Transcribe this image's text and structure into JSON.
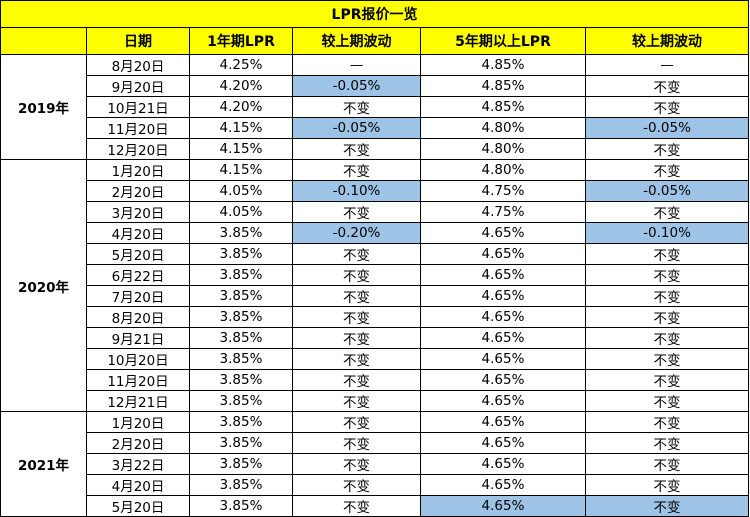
{
  "title": "LPR报价一览",
  "headers": [
    "日期",
    "1年期LPR",
    "较上期波动",
    "5年期以上LPR",
    "较上期波动"
  ],
  "colors": {
    "header_bg": "#ffff00",
    "highlight": "#9dc3e6"
  },
  "groups": [
    {
      "year": "2019年",
      "rows": [
        {
          "date": "8月20日",
          "lpr1": "4.25%",
          "chg1": "—",
          "lpr5": "4.85%",
          "chg5": "—",
          "hl1": false,
          "hl5": false,
          "hl5v": false
        },
        {
          "date": "9月20日",
          "lpr1": "4.20%",
          "chg1": "-0.05%",
          "lpr5": "4.85%",
          "chg5": "不变",
          "hl1": true,
          "hl5": false,
          "hl5v": false
        },
        {
          "date": "10月21日",
          "lpr1": "4.20%",
          "chg1": "不变",
          "lpr5": "4.85%",
          "chg5": "不变",
          "hl1": false,
          "hl5": false,
          "hl5v": false
        },
        {
          "date": "11月20日",
          "lpr1": "4.15%",
          "chg1": "-0.05%",
          "lpr5": "4.80%",
          "chg5": "-0.05%",
          "hl1": true,
          "hl5": true,
          "hl5v": false
        },
        {
          "date": "12月20日",
          "lpr1": "4.15%",
          "chg1": "不变",
          "lpr5": "4.80%",
          "chg5": "不变",
          "hl1": false,
          "hl5": false,
          "hl5v": false
        }
      ]
    },
    {
      "year": "2020年",
      "rows": [
        {
          "date": "1月20日",
          "lpr1": "4.15%",
          "chg1": "不变",
          "lpr5": "4.80%",
          "chg5": "不变",
          "hl1": false,
          "hl5": false,
          "hl5v": false
        },
        {
          "date": "2月20日",
          "lpr1": "4.05%",
          "chg1": "-0.10%",
          "lpr5": "4.75%",
          "chg5": "-0.05%",
          "hl1": true,
          "hl5": true,
          "hl5v": false
        },
        {
          "date": "3月20日",
          "lpr1": "4.05%",
          "chg1": "不变",
          "lpr5": "4.75%",
          "chg5": "不变",
          "hl1": false,
          "hl5": false,
          "hl5v": false
        },
        {
          "date": "4月20日",
          "lpr1": "3.85%",
          "chg1": "-0.20%",
          "lpr5": "4.65%",
          "chg5": "-0.10%",
          "hl1": true,
          "hl5": true,
          "hl5v": false
        },
        {
          "date": "5月20日",
          "lpr1": "3.85%",
          "chg1": "不变",
          "lpr5": "4.65%",
          "chg5": "不变",
          "hl1": false,
          "hl5": false,
          "hl5v": false
        },
        {
          "date": "6月22日",
          "lpr1": "3.85%",
          "chg1": "不变",
          "lpr5": "4.65%",
          "chg5": "不变",
          "hl1": false,
          "hl5": false,
          "hl5v": false
        },
        {
          "date": "7月20日",
          "lpr1": "3.85%",
          "chg1": "不变",
          "lpr5": "4.65%",
          "chg5": "不变",
          "hl1": false,
          "hl5": false,
          "hl5v": false
        },
        {
          "date": "8月20日",
          "lpr1": "3.85%",
          "chg1": "不变",
          "lpr5": "4.65%",
          "chg5": "不变",
          "hl1": false,
          "hl5": false,
          "hl5v": false
        },
        {
          "date": "9月21日",
          "lpr1": "3.85%",
          "chg1": "不变",
          "lpr5": "4.65%",
          "chg5": "不变",
          "hl1": false,
          "hl5": false,
          "hl5v": false
        },
        {
          "date": "10月20日",
          "lpr1": "3.85%",
          "chg1": "不变",
          "lpr5": "4.65%",
          "chg5": "不变",
          "hl1": false,
          "hl5": false,
          "hl5v": false
        },
        {
          "date": "11月20日",
          "lpr1": "3.85%",
          "chg1": "不变",
          "lpr5": "4.65%",
          "chg5": "不变",
          "hl1": false,
          "hl5": false,
          "hl5v": false
        },
        {
          "date": "12月21日",
          "lpr1": "3.85%",
          "chg1": "不变",
          "lpr5": "4.65%",
          "chg5": "不变",
          "hl1": false,
          "hl5": false,
          "hl5v": false
        }
      ]
    },
    {
      "year": "2021年",
      "rows": [
        {
          "date": "1月20日",
          "lpr1": "3.85%",
          "chg1": "不变",
          "lpr5": "4.65%",
          "chg5": "不变",
          "hl1": false,
          "hl5": false,
          "hl5v": false
        },
        {
          "date": "2月20日",
          "lpr1": "3.85%",
          "chg1": "不变",
          "lpr5": "4.65%",
          "chg5": "不变",
          "hl1": false,
          "hl5": false,
          "hl5v": false
        },
        {
          "date": "3月22日",
          "lpr1": "3.85%",
          "chg1": "不变",
          "lpr5": "4.65%",
          "chg5": "不变",
          "hl1": false,
          "hl5": false,
          "hl5v": false
        },
        {
          "date": "4月20日",
          "lpr1": "3.85%",
          "chg1": "不变",
          "lpr5": "4.65%",
          "chg5": "不变",
          "hl1": false,
          "hl5": false,
          "hl5v": false
        },
        {
          "date": "5月20日",
          "lpr1": "3.85%",
          "chg1": "不变",
          "lpr5": "4.65%",
          "chg5": "不变",
          "hl1": false,
          "hl5": true,
          "hl5v": true
        }
      ]
    }
  ]
}
